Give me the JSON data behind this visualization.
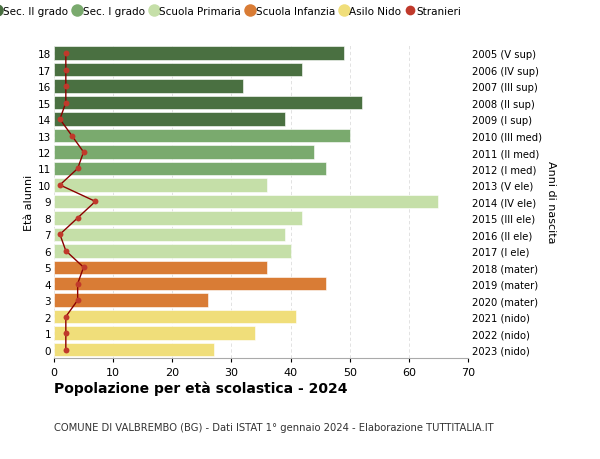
{
  "ages": [
    18,
    17,
    16,
    15,
    14,
    13,
    12,
    11,
    10,
    9,
    8,
    7,
    6,
    5,
    4,
    3,
    2,
    1,
    0
  ],
  "right_labels": [
    "2005 (V sup)",
    "2006 (IV sup)",
    "2007 (III sup)",
    "2008 (II sup)",
    "2009 (I sup)",
    "2010 (III med)",
    "2011 (II med)",
    "2012 (I med)",
    "2013 (V ele)",
    "2014 (IV ele)",
    "2015 (III ele)",
    "2016 (II ele)",
    "2017 (I ele)",
    "2018 (mater)",
    "2019 (mater)",
    "2020 (mater)",
    "2021 (nido)",
    "2022 (nido)",
    "2023 (nido)"
  ],
  "bar_values": [
    49,
    42,
    32,
    52,
    39,
    50,
    44,
    46,
    36,
    65,
    42,
    39,
    40,
    36,
    46,
    26,
    41,
    34,
    27
  ],
  "bar_colors": [
    "#4a7041",
    "#4a7041",
    "#4a7041",
    "#4a7041",
    "#4a7041",
    "#7aaa6e",
    "#7aaa6e",
    "#7aaa6e",
    "#c5dfa8",
    "#c5dfa8",
    "#c5dfa8",
    "#c5dfa8",
    "#c5dfa8",
    "#d97c35",
    "#d97c35",
    "#d97c35",
    "#f0de7a",
    "#f0de7a",
    "#f0de7a"
  ],
  "stranieri_values": [
    2,
    2,
    2,
    2,
    1,
    3,
    5,
    4,
    1,
    7,
    4,
    1,
    2,
    5,
    4,
    4,
    2,
    2,
    2
  ],
  "legend_labels": [
    "Sec. II grado",
    "Sec. I grado",
    "Scuola Primaria",
    "Scuola Infanzia",
    "Asilo Nido",
    "Stranieri"
  ],
  "legend_colors": [
    "#4a7041",
    "#7aaa6e",
    "#c5dfa8",
    "#d97c35",
    "#f0de7a",
    "#c0392b"
  ],
  "ylabel_left": "Età alunni",
  "ylabel_right": "Anni di nascita",
  "title": "Popolazione per età scolastica - 2024",
  "subtitle": "COMUNE DI VALBREMBO (BG) - Dati ISTAT 1° gennaio 2024 - Elaborazione TUTTITALIA.IT",
  "xlim": [
    0,
    70
  ],
  "background_color": "#ffffff",
  "grid_color": "#dddddd"
}
